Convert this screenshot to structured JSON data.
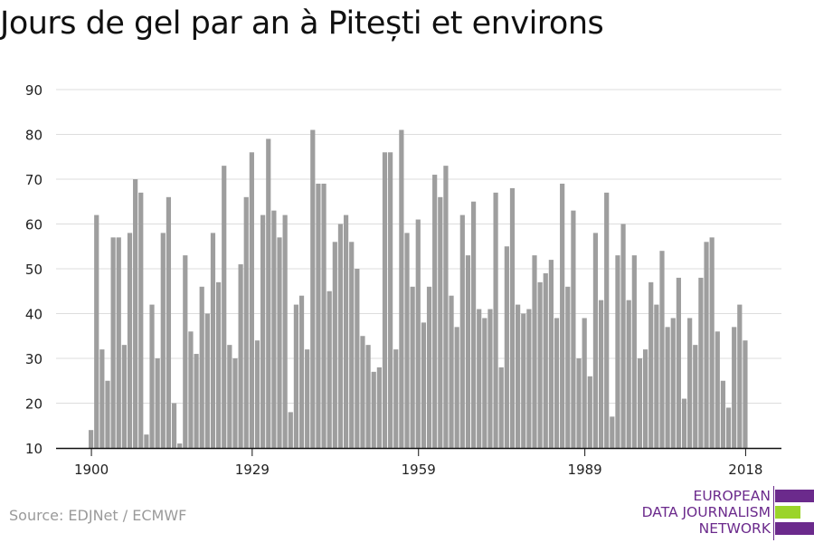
{
  "chart_data": {
    "type": "bar",
    "title": "Jours de gel par an à Pitești et environs",
    "x_start": 1900,
    "x_end": 2018,
    "x_ticks": [
      1900,
      1929,
      1959,
      1989,
      2018
    ],
    "y_ticks": [
      10,
      20,
      30,
      40,
      50,
      60,
      70,
      80,
      90
    ],
    "ylim": [
      10,
      90
    ],
    "grid": true,
    "bar_color": "#9e9e9e",
    "values": [
      14,
      62,
      32,
      25,
      57,
      57,
      33,
      58,
      70,
      67,
      13,
      42,
      30,
      58,
      66,
      20,
      11,
      53,
      36,
      31,
      46,
      40,
      58,
      47,
      73,
      33,
      30,
      51,
      66,
      76,
      34,
      62,
      79,
      63,
      57,
      62,
      18,
      42,
      44,
      32,
      81,
      69,
      69,
      45,
      56,
      60,
      62,
      56,
      50,
      35,
      33,
      27,
      28,
      76,
      76,
      32,
      81,
      58,
      46,
      61,
      38,
      46,
      71,
      66,
      73,
      44,
      37,
      62,
      53,
      65,
      41,
      39,
      41,
      67,
      28,
      55,
      68,
      42,
      40,
      41,
      53,
      47,
      49,
      52,
      39,
      69,
      46,
      63,
      30,
      39,
      26,
      58,
      43,
      67,
      17,
      53,
      60,
      43,
      53,
      30,
      32,
      47,
      42,
      54,
      37,
      39,
      48,
      21,
      39,
      33,
      48,
      56,
      57,
      36,
      25,
      19,
      37,
      42,
      34
    ]
  },
  "source": "Source: EDJNet / ECMWF",
  "logo": {
    "line1": "EUROPEAN",
    "line2": "DATA JOURNALISM",
    "line3": "NETWORK",
    "purple": "#6b2a8c",
    "green": "#9bd42a"
  }
}
